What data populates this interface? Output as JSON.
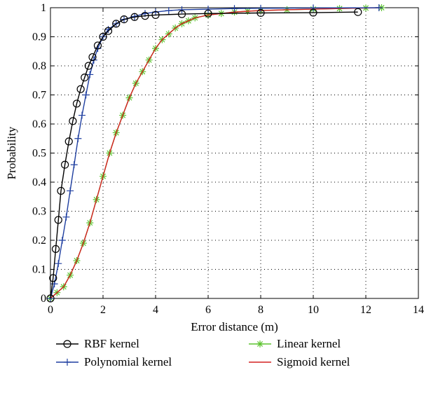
{
  "chart_data": {
    "type": "line",
    "title": "",
    "xlabel": "Error distance (m)",
    "ylabel": "Probability",
    "xlim": [
      0,
      14
    ],
    "ylim": [
      0,
      1
    ],
    "xticks": [
      0,
      2,
      4,
      6,
      8,
      10,
      12,
      14
    ],
    "yticks": [
      0,
      0.1,
      0.2,
      0.3,
      0.4,
      0.5,
      0.6,
      0.7,
      0.8,
      0.9,
      1
    ],
    "grid": true,
    "grid_style": "dotted",
    "legend_position": "bottom, below plot, two columns",
    "series": [
      {
        "name": "RBF kernel",
        "color": "#000000",
        "marker": "circle",
        "x": [
          0,
          0.1,
          0.2,
          0.3,
          0.4,
          0.55,
          0.7,
          0.85,
          1.0,
          1.15,
          1.3,
          1.45,
          1.6,
          1.8,
          2.0,
          2.2,
          2.5,
          2.8,
          3.2,
          3.6,
          4.0,
          5.0,
          6.0,
          8.0,
          10.0,
          11.7
        ],
        "y": [
          0,
          0.07,
          0.17,
          0.27,
          0.37,
          0.46,
          0.54,
          0.61,
          0.67,
          0.72,
          0.76,
          0.8,
          0.83,
          0.87,
          0.9,
          0.92,
          0.945,
          0.96,
          0.968,
          0.972,
          0.975,
          0.978,
          0.98,
          0.982,
          0.983,
          0.985
        ]
      },
      {
        "name": "Polynomial kernel",
        "color": "#1f3fa0",
        "marker": "plus",
        "x": [
          0,
          0.15,
          0.3,
          0.45,
          0.6,
          0.75,
          0.9,
          1.05,
          1.2,
          1.35,
          1.5,
          1.65,
          1.8,
          2.0,
          2.2,
          2.5,
          2.8,
          3.2,
          3.6,
          4.0,
          4.5,
          5.0,
          6.0,
          7.0,
          8.0,
          10.0,
          12.5
        ],
        "y": [
          0,
          0.05,
          0.12,
          0.2,
          0.28,
          0.37,
          0.46,
          0.55,
          0.63,
          0.7,
          0.77,
          0.82,
          0.86,
          0.9,
          0.925,
          0.945,
          0.96,
          0.97,
          0.98,
          0.985,
          0.99,
          0.993,
          0.995,
          0.997,
          0.998,
          0.999,
          1.0
        ]
      },
      {
        "name": "Linear kernel",
        "color": "#5cc32f",
        "marker": "asterisk",
        "x": [
          0,
          0.25,
          0.5,
          0.75,
          1.0,
          1.25,
          1.5,
          1.75,
          2.0,
          2.25,
          2.5,
          2.75,
          3.0,
          3.25,
          3.5,
          3.75,
          4.0,
          4.25,
          4.5,
          4.75,
          5.0,
          5.25,
          5.5,
          6.0,
          6.5,
          7.0,
          7.5,
          8.0,
          9.0,
          10.0,
          11.0,
          12.0,
          12.6
        ],
        "y": [
          0,
          0.02,
          0.04,
          0.08,
          0.13,
          0.19,
          0.26,
          0.34,
          0.42,
          0.5,
          0.57,
          0.63,
          0.69,
          0.74,
          0.78,
          0.82,
          0.86,
          0.89,
          0.91,
          0.93,
          0.945,
          0.955,
          0.965,
          0.975,
          0.98,
          0.985,
          0.988,
          0.99,
          0.993,
          0.995,
          0.997,
          0.999,
          1.0
        ]
      },
      {
        "name": "Sigmoid kernel",
        "color": "#d42020",
        "marker": "none",
        "x": [
          0,
          0.25,
          0.5,
          0.75,
          1.0,
          1.25,
          1.5,
          1.75,
          2.0,
          2.25,
          2.5,
          2.75,
          3.0,
          3.25,
          3.5,
          3.75,
          4.0,
          4.25,
          4.5,
          4.75,
          5.0,
          5.25,
          5.5,
          6.0,
          6.5,
          7.0,
          7.5,
          8.0,
          9.0,
          10.0,
          11.0,
          12.0,
          12.6
        ],
        "y": [
          0,
          0.02,
          0.04,
          0.08,
          0.13,
          0.19,
          0.26,
          0.34,
          0.42,
          0.5,
          0.57,
          0.63,
          0.69,
          0.74,
          0.78,
          0.82,
          0.86,
          0.89,
          0.91,
          0.93,
          0.945,
          0.955,
          0.965,
          0.975,
          0.98,
          0.985,
          0.988,
          0.99,
          0.993,
          0.995,
          0.997,
          0.999,
          1.0
        ]
      }
    ]
  }
}
